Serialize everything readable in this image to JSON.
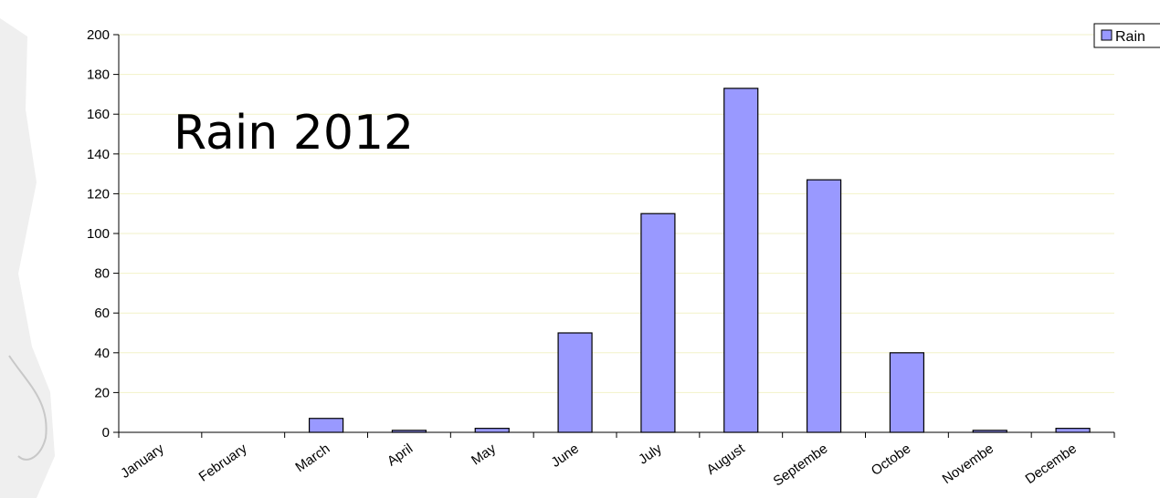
{
  "chart_data": {
    "type": "bar",
    "title": "Rain 2012",
    "xlabel": "",
    "ylabel": "",
    "categories": [
      "January",
      "February",
      "March",
      "April",
      "May",
      "June",
      "July",
      "August",
      "Septembe",
      "Octobe",
      "Novembe",
      "Decembe"
    ],
    "series": [
      {
        "name": "Rain",
        "color": "#9999ff",
        "values": [
          0,
          0,
          7,
          1,
          2,
          50,
          110,
          173,
          127,
          40,
          1,
          2
        ]
      }
    ],
    "ylim": [
      0,
      200
    ],
    "yticks": [
      0,
      20,
      40,
      60,
      80,
      100,
      120,
      140,
      160,
      180,
      200
    ],
    "gridlines": true,
    "gridline_color": "#f2f2c8",
    "legend": "top-right"
  }
}
